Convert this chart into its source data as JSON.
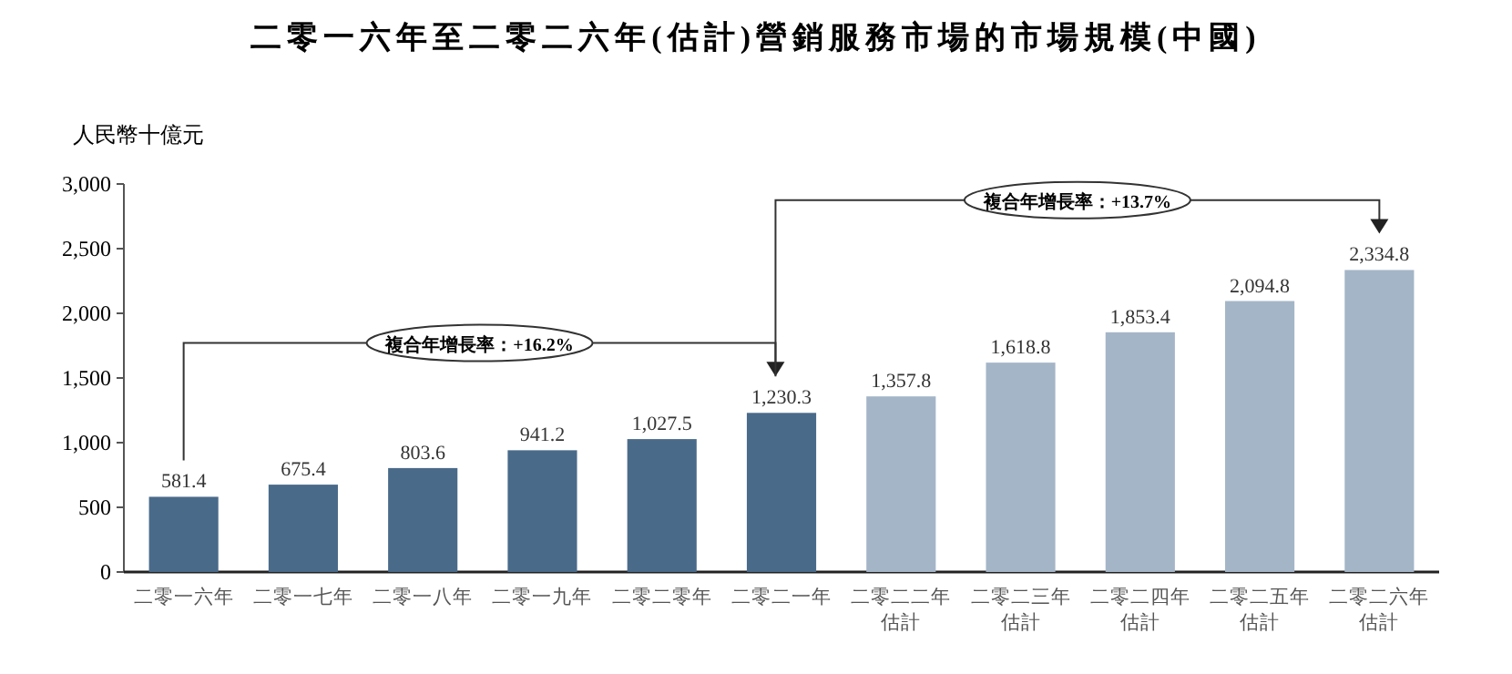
{
  "chart_data": {
    "type": "bar",
    "title": "二零一六年至二零二六年(估計)營銷服務市場的市場規模(中國)",
    "ylabel": "人民幣十億元",
    "categories": [
      "二零一六年",
      "二零一七年",
      "二零一八年",
      "二零一九年",
      "二零二零年",
      "二零二一年",
      "二零二二年估計",
      "二零二三年估計",
      "二零二四年估計",
      "二零二五年估計",
      "二零二六年估計"
    ],
    "values": [
      581.4,
      675.4,
      803.6,
      941.2,
      1027.5,
      1230.3,
      1357.8,
      1618.8,
      1853.4,
      2094.8,
      2334.8
    ],
    "colors": [
      "#4a6a8a",
      "#4a6a8a",
      "#4a6a8a",
      "#4a6a8a",
      "#4a6a8a",
      "#4a6a8a",
      "#a4b5c7",
      "#a4b5c7",
      "#a4b5c7",
      "#a4b5c7",
      "#a4b5c7"
    ],
    "value_labels": [
      "581.4",
      "675.4",
      "803.6",
      "941.2",
      "1,027.5",
      "1,230.3",
      "1,357.8",
      "1,618.8",
      "1,853.4",
      "2,094.8",
      "2,334.8"
    ],
    "ylim": [
      0,
      3000
    ],
    "yticks": [
      {
        "value": 0,
        "label": "0"
      },
      {
        "value": 500,
        "label": "500"
      },
      {
        "value": 1000,
        "label": "1,000"
      },
      {
        "value": 1500,
        "label": "1,500"
      },
      {
        "value": 2000,
        "label": "2,000"
      },
      {
        "value": 2500,
        "label": "2,500"
      },
      {
        "value": 3000,
        "label": "3,000"
      }
    ],
    "grid": false,
    "annotations": [
      "複合年增長率：+16.2%",
      "複合年增長率：+13.7%"
    ]
  }
}
